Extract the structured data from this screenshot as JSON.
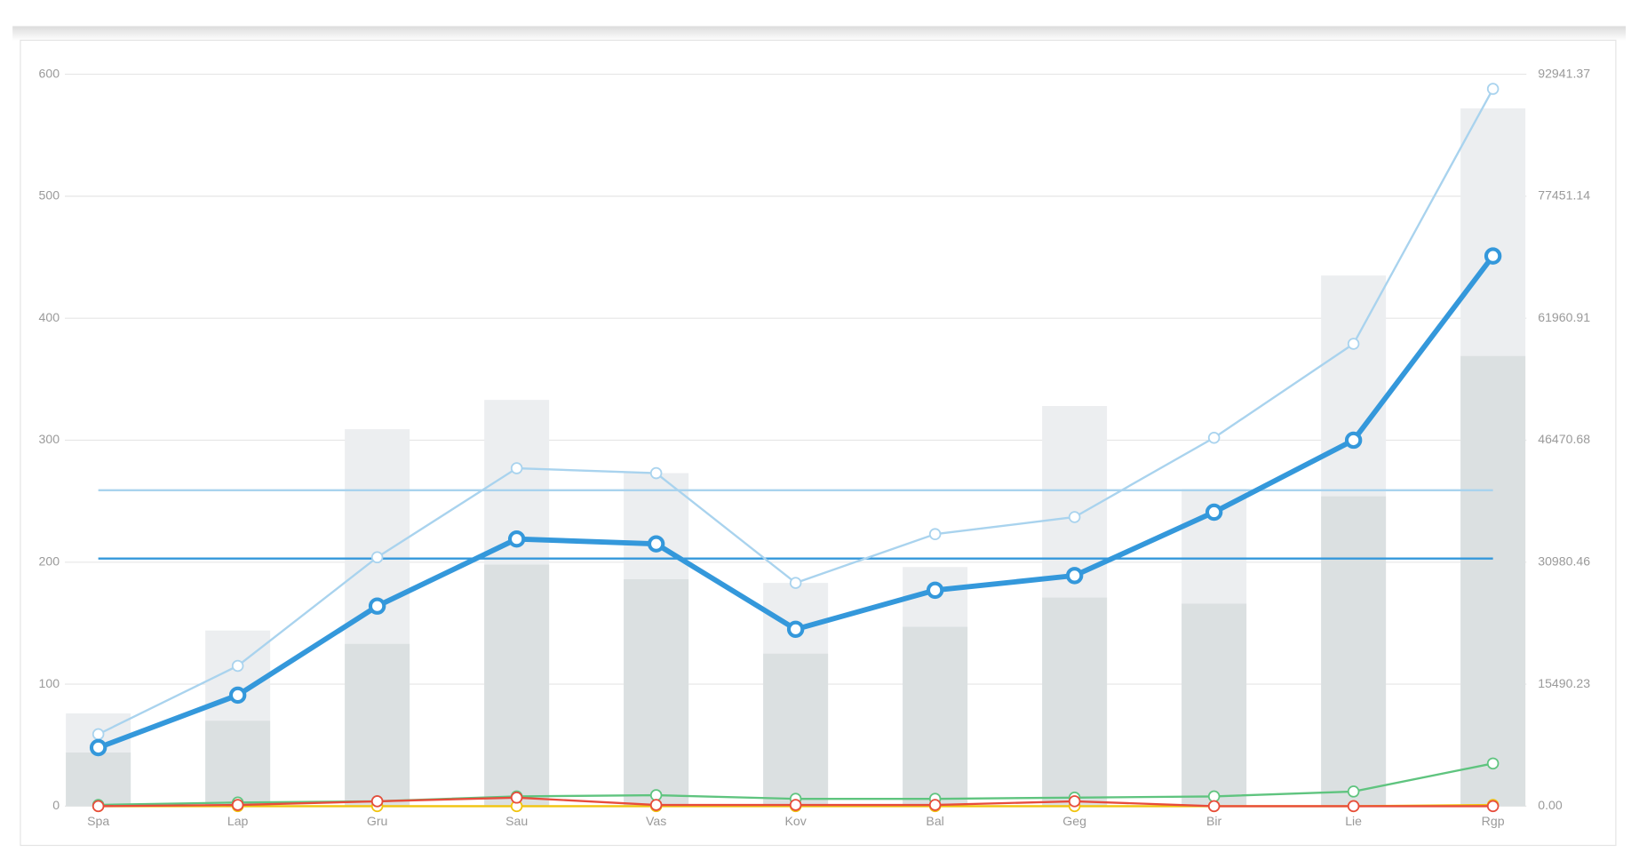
{
  "chart_data": {
    "type": "combo",
    "categories": [
      "Spa",
      "Lap",
      "Gru",
      "Sau",
      "Vas",
      "Kov",
      "Bal",
      "Geg",
      "Bir",
      "Lie",
      "Rgp"
    ],
    "ylim": [
      0,
      600
    ],
    "yticks": [
      0,
      100,
      200,
      300,
      400,
      500,
      600
    ],
    "y2lim": [
      0,
      92941.37
    ],
    "y2ticks": [
      {
        "value": 0,
        "label": "0.00"
      },
      {
        "value": 15490.23,
        "label": "15490.23"
      },
      {
        "value": 30980.46,
        "label": "30980.46"
      },
      {
        "value": 46470.68,
        "label": "46470.68"
      },
      {
        "value": 61960.91,
        "label": "61960.91"
      },
      {
        "value": 77451.14,
        "label": "77451.14"
      },
      {
        "value": 92941.37,
        "label": "92941.37"
      }
    ],
    "grid": true,
    "series": [
      {
        "type": "bar",
        "color": "#eceef0",
        "values": [
          76,
          144,
          309,
          333,
          273,
          183,
          196,
          328,
          260,
          435,
          572
        ]
      },
      {
        "type": "bar",
        "color": "#dbe0e1",
        "values": [
          44,
          70,
          133,
          198,
          186,
          125,
          147,
          171,
          166,
          254,
          369
        ]
      },
      {
        "type": "line",
        "color": "#a9d3ee",
        "line_width": 2,
        "values": [
          59,
          115,
          204,
          277,
          273,
          183,
          223,
          237,
          302,
          379,
          588
        ]
      },
      {
        "type": "line",
        "color": "#3498db",
        "line_width": 5,
        "values": [
          48,
          91,
          164,
          219,
          215,
          145,
          177,
          189,
          241,
          300,
          451
        ]
      },
      {
        "type": "line",
        "color": "#f1c40f",
        "line_width": 2,
        "values": [
          0,
          0,
          0,
          0,
          0,
          0,
          0,
          0,
          0,
          0,
          1
        ]
      },
      {
        "type": "line",
        "color": "#5fc47f",
        "line_width": 2,
        "values": [
          1,
          3,
          4,
          8,
          9,
          6,
          6,
          7,
          8,
          12,
          35
        ]
      },
      {
        "type": "line",
        "color": "#e74c3c",
        "line_width": 2,
        "values": [
          0,
          1,
          4,
          7,
          1,
          1,
          1,
          4,
          0,
          0,
          0
        ]
      }
    ],
    "reference_lines": [
      {
        "value": 259,
        "color": "#a9d3ee"
      },
      {
        "value": 203,
        "color": "#3498db"
      }
    ]
  }
}
